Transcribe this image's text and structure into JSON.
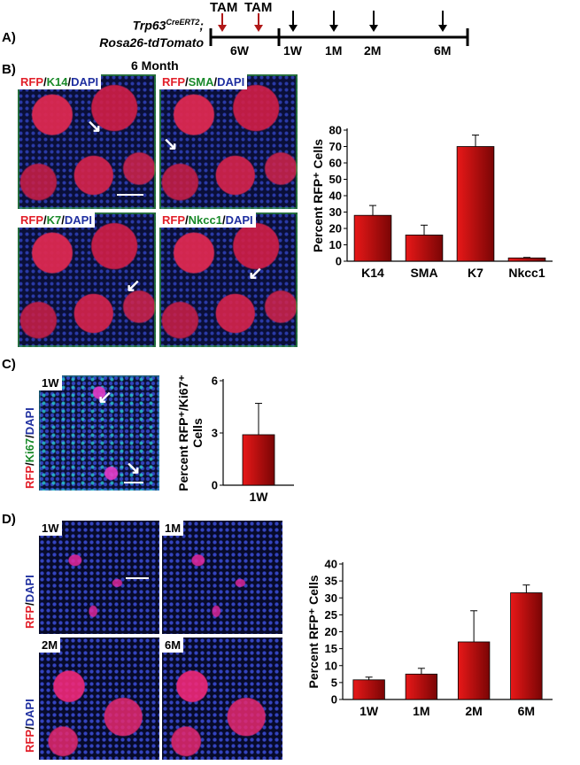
{
  "panelA": {
    "label": "A)",
    "genotype_line1_main": "Trp63",
    "genotype_line1_sup": "CreERT2",
    "genotype_line1_end": ";",
    "genotype_line2": "Rosa26-tdTomato",
    "tam1": "TAM",
    "tam2": "TAM",
    "period": "6W",
    "timepoints": [
      "1W",
      "1M",
      "2M",
      "6M"
    ],
    "colors": {
      "tam_arrow": "#b01818",
      "arrow": "#000000"
    }
  },
  "panelB": {
    "label": "B)",
    "heading": "6 Month",
    "stains": [
      {
        "a": "RFP",
        "b": "K14",
        "c": "DAPI"
      },
      {
        "a": "RFP",
        "b": "SMA",
        "c": "DAPI"
      },
      {
        "a": "RFP",
        "b": "K7",
        "c": "DAPI"
      },
      {
        "a": "RFP",
        "b": "Nkcc1",
        "c": "DAPI"
      }
    ],
    "sep": "/"
  },
  "panelC": {
    "label": "C)",
    "image_label": "1W",
    "side_label_a": "RFP",
    "side_label_b": "Ki67",
    "side_label_c": "DAPI",
    "sep": "/"
  },
  "panelD": {
    "label": "D)",
    "image_labels": [
      "1W",
      "1M",
      "2M",
      "6M"
    ],
    "side_label_a": "RFP",
    "side_label_c": "DAPI",
    "sep": "/"
  },
  "chart_data": [
    {
      "type": "bar",
      "ylabel": "Percent RFP⁺ Cells",
      "categories": [
        "K14",
        "SMA",
        "K7",
        "Nkcc1"
      ],
      "values": [
        28,
        16,
        70,
        2
      ],
      "errors": [
        6,
        6,
        7,
        0.3
      ],
      "yticks": [
        0,
        10,
        20,
        30,
        40,
        50,
        60,
        70,
        80
      ],
      "ylim": [
        0,
        80
      ],
      "color": "#c01010"
    },
    {
      "type": "bar",
      "ylabel": "Percent RFP⁺/Ki67⁺ Cells",
      "categories": [
        "1W"
      ],
      "values": [
        2.9
      ],
      "errors": [
        1.8
      ],
      "yticks": [
        0,
        3,
        6
      ],
      "ylim": [
        0,
        6
      ],
      "color": "#c01010"
    },
    {
      "type": "bar",
      "ylabel": "Percent RFP⁺ Cells",
      "categories": [
        "1W",
        "1M",
        "2M",
        "6M"
      ],
      "values": [
        5.8,
        7.5,
        17,
        31.5
      ],
      "errors": [
        0.8,
        1.7,
        9.2,
        2.3
      ],
      "yticks": [
        0,
        5,
        10,
        15,
        20,
        25,
        30,
        35,
        40
      ],
      "ylim": [
        0,
        40
      ],
      "color": "#c01010"
    }
  ]
}
